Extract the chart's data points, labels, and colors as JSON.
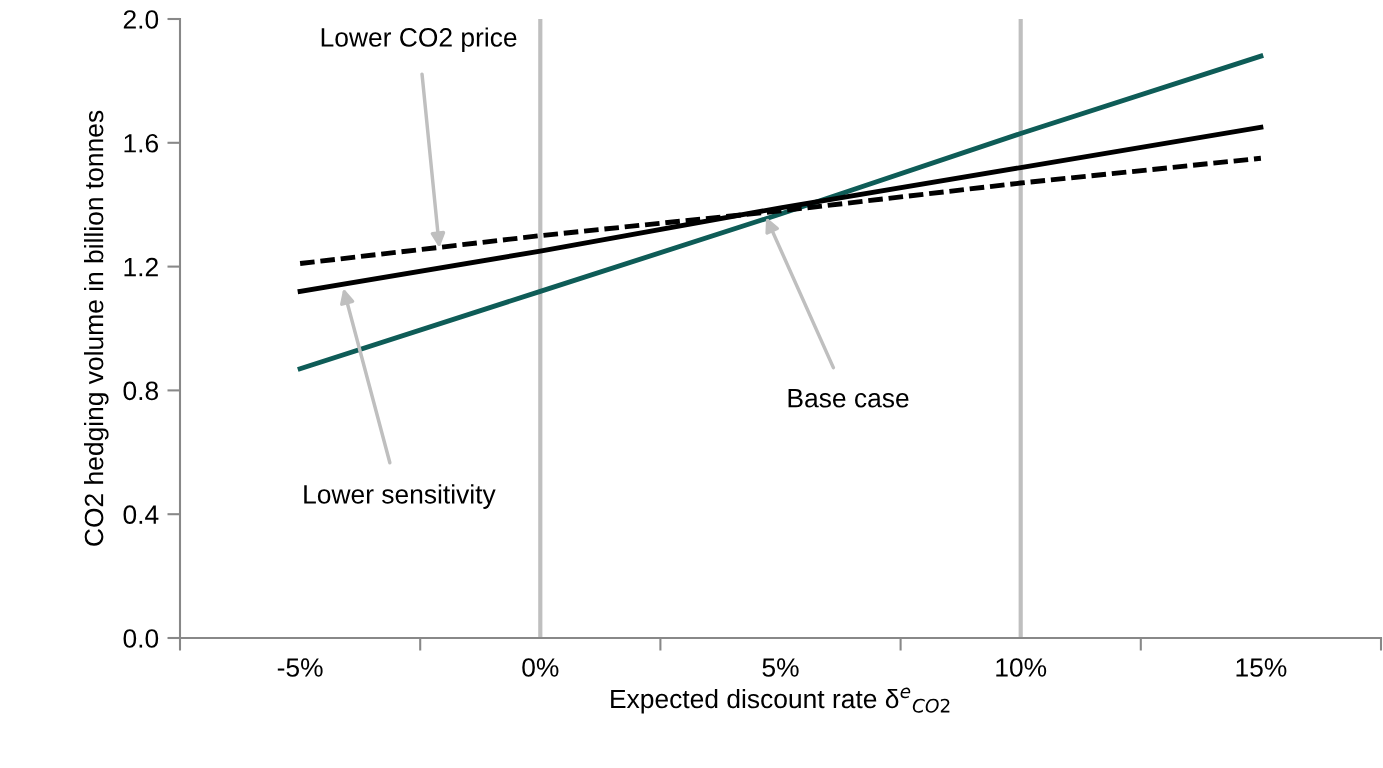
{
  "chart_data": {
    "type": "line",
    "xlabel": "Expected discount rate δ$^{e}$$_{CO2}$",
    "ylabel": "CO2 hedging volume in billion tonnes",
    "x": [
      -5,
      0,
      5,
      10,
      15
    ],
    "series": [
      {
        "color": "#0e5c57",
        "line_style": "solid",
        "values": [
          0.87,
          1.12,
          1.37,
          1.63,
          1.88
        ]
      },
      {
        "color": "#000000",
        "line_style": "solid",
        "values": [
          1.12,
          1.25,
          1.39,
          1.52,
          1.65
        ]
      },
      {
        "color": "#000000",
        "line_style": "dashed",
        "values": [
          1.21,
          1.3,
          1.38,
          1.47,
          1.55
        ]
      }
    ],
    "xlim": [
      -7.5,
      17.5
    ],
    "xticks": [
      {
        "value": -7.5,
        "label": null
      },
      {
        "value": -5,
        "label": "-5%"
      },
      {
        "value": -2.5,
        "label": null
      },
      {
        "value": 0,
        "label": "0%"
      },
      {
        "value": 2.5,
        "label": null
      },
      {
        "value": 5,
        "label": "5%"
      },
      {
        "value": 7.5,
        "label": null
      },
      {
        "value": 10,
        "label": "10%"
      },
      {
        "value": 12.5,
        "label": null
      },
      {
        "value": 15,
        "label": "15%"
      },
      {
        "value": 17.5,
        "label": null
      }
    ],
    "ylim": [
      0,
      2.0
    ],
    "yticks": [
      {
        "value": 0,
        "label": "0.0"
      },
      {
        "value": 0.4,
        "label": "0.4"
      },
      {
        "value": 0.8,
        "label": "0.8"
      },
      {
        "value": 1.2,
        "label": "1.2"
      },
      {
        "value": 1.6,
        "label": "1.6"
      },
      {
        "value": 2.0,
        "label": "2.0"
      }
    ],
    "ref_lines": [
      {
        "axis": "x",
        "value": 0,
        "color": "#bfbfbf"
      },
      {
        "axis": "x",
        "value": 10,
        "color": "#bfbfbf"
      }
    ],
    "annotations": [
      {
        "text": "Lower CO2 price",
        "x": -2.1,
        "y": 1.26
      },
      {
        "text": "Lower sensitivity",
        "x": -4.1,
        "y": 1.13
      },
      {
        "text": "Base case",
        "x": 4.7,
        "y": 1.36
      }
    ],
    "grid": false,
    "legend": false,
    "marker": "none"
  }
}
